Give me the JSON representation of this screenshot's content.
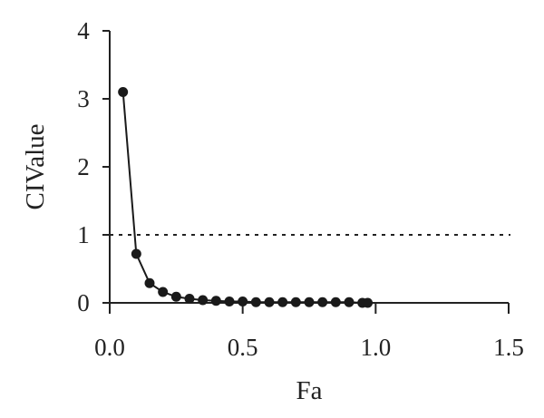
{
  "chart_data": {
    "type": "line",
    "xlabel": "Fa",
    "ylabel": "CIValue",
    "xlim": [
      0,
      1.5
    ],
    "ylim": [
      0,
      4
    ],
    "xticks": [
      0.0,
      0.5,
      1.0,
      1.5
    ],
    "xtick_labels": [
      "0.0",
      "0.5",
      "1.0",
      "1.5"
    ],
    "yticks": [
      0,
      1,
      2,
      3,
      4
    ],
    "ytick_labels": [
      "0",
      "1",
      "2",
      "3",
      "4"
    ],
    "grid": false,
    "reference_line": {
      "y": 1,
      "style": "dashed"
    },
    "series": [
      {
        "marker": "circle",
        "color": "#1a1a1a",
        "x": [
          0.05,
          0.1,
          0.15,
          0.2,
          0.25,
          0.3,
          0.35,
          0.4,
          0.45,
          0.5,
          0.55,
          0.6,
          0.65,
          0.7,
          0.75,
          0.8,
          0.85,
          0.9,
          0.95,
          0.97
        ],
        "y": [
          3.1,
          0.72,
          0.29,
          0.16,
          0.09,
          0.06,
          0.04,
          0.03,
          0.02,
          0.02,
          0.01,
          0.01,
          0.01,
          0.01,
          0.01,
          0.01,
          0.01,
          0.01,
          0.0,
          0.0
        ]
      }
    ]
  }
}
